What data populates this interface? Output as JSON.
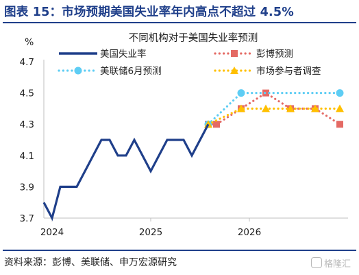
{
  "figure": {
    "title": "图表 15：市场预期美国失业率年内高点不超过 4.5%",
    "source": "资料来源：彭博、美联储、申万宏源研究",
    "watermark": "格隆汇"
  },
  "chart_data": {
    "type": "line",
    "title": "不同机构对于美国失业率预测",
    "ylabel": "%",
    "ylim": [
      3.7,
      4.7
    ],
    "yticks": [
      "3.7",
      "3.9",
      "4.1",
      "4.3",
      "4.5",
      "4.7"
    ],
    "xticks": [
      "2024",
      "2025",
      "2026"
    ],
    "grid": false,
    "legend_position": "top",
    "series": [
      {
        "name": "美国失业率",
        "style": "solid",
        "color": "#1f3f8a",
        "marker": "none",
        "points": [
          [
            "2023-12",
            3.8
          ],
          [
            "2024-01",
            3.7
          ],
          [
            "2024-02",
            3.9
          ],
          [
            "2024-03",
            3.9
          ],
          [
            "2024-04",
            3.9
          ],
          [
            "2024-05",
            4.0
          ],
          [
            "2024-06",
            4.1
          ],
          [
            "2024-07",
            4.2
          ],
          [
            "2024-08",
            4.2
          ],
          [
            "2024-09",
            4.1
          ],
          [
            "2024-10",
            4.1
          ],
          [
            "2024-11",
            4.2
          ],
          [
            "2024-12",
            4.1
          ],
          [
            "2025-01",
            4.0
          ],
          [
            "2025-02",
            4.1
          ],
          [
            "2025-03",
            4.2
          ],
          [
            "2025-04",
            4.2
          ],
          [
            "2025-05",
            4.2
          ],
          [
            "2025-06",
            4.1
          ],
          [
            "2025-07",
            4.2
          ],
          [
            "2025-08",
            4.3
          ]
        ]
      },
      {
        "name": "彭博预测",
        "style": "dotted",
        "color": "#e46a64",
        "marker": "square",
        "points": [
          [
            "2025-08",
            4.3
          ],
          [
            "2025-09",
            4.3
          ],
          [
            "2025-12",
            4.4
          ],
          [
            "2026-03",
            4.5
          ],
          [
            "2026-06",
            4.4
          ],
          [
            "2026-09",
            4.4
          ],
          [
            "2026-12",
            4.3
          ]
        ]
      },
      {
        "name": "美联储6月预测",
        "style": "dotted",
        "color": "#5ecdf4",
        "marker": "circle",
        "points": [
          [
            "2025-08",
            4.3
          ],
          [
            "2025-12",
            4.5
          ],
          [
            "2026-12",
            4.5
          ]
        ]
      },
      {
        "name": "市场参与者调查",
        "style": "dotted",
        "color": "#ffc000",
        "marker": "triangle",
        "points": [
          [
            "2025-08",
            4.3
          ],
          [
            "2025-12",
            4.4
          ],
          [
            "2026-03",
            4.4
          ],
          [
            "2026-06",
            4.4
          ],
          [
            "2026-09",
            4.4
          ],
          [
            "2026-12",
            4.4
          ]
        ]
      }
    ]
  }
}
